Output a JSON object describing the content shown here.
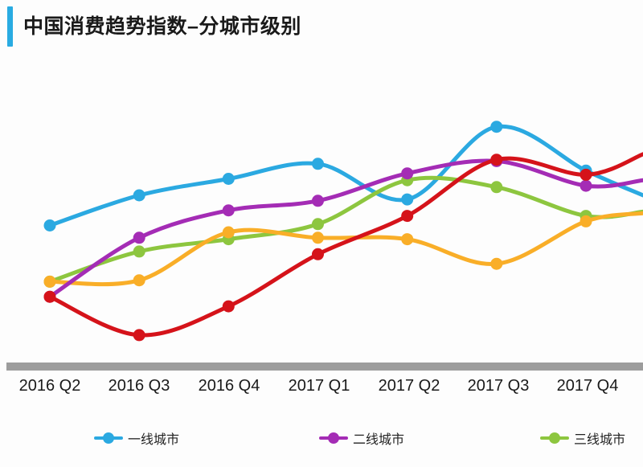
{
  "page": {
    "background": "#fdfdfd"
  },
  "header": {
    "title": "中国消费趋势指数–分城市级别",
    "accent_color": "#29abe2",
    "text_color": "#1a1a1a"
  },
  "chart_data": {
    "type": "line",
    "title": "中国消费趋势指数–分城市级别",
    "categories": [
      "2016 Q2",
      "2016 Q3",
      "2016 Q4",
      "2017 Q1",
      "2017 Q2",
      "2017 Q3",
      "2017 Q4"
    ],
    "xlabel": "",
    "ylabel": "",
    "ylim": [
      52,
      72
    ],
    "y_axis_visible": false,
    "grid": false,
    "legend_position": "bottom",
    "series": [
      {
        "id": "tier1",
        "name": "一线城市",
        "color": "#2ba9e1",
        "values": [
          62.0,
          64.2,
          65.4,
          66.5,
          63.9,
          69.2,
          66.0
        ],
        "offscreen_next": 64.2
      },
      {
        "id": "tier2",
        "name": "二线城市",
        "color": "#a42cb5",
        "values": [
          56.8,
          61.1,
          63.1,
          63.8,
          65.8,
          66.7,
          64.9
        ],
        "offscreen_next": 65.3
      },
      {
        "id": "tier3",
        "name": "三线城市",
        "color": "#8dc63f",
        "values": [
          57.9,
          60.1,
          61.0,
          62.1,
          65.3,
          64.8,
          62.7
        ],
        "offscreen_next": 63.0
      },
      {
        "id": "series-orange",
        "name": "",
        "color": "#f9ae28",
        "values": [
          57.9,
          58.0,
          61.5,
          61.1,
          61.0,
          59.2,
          62.3
        ],
        "offscreen_next": 62.9
      },
      {
        "id": "series-red",
        "name": "",
        "color": "#d5131a",
        "values": [
          56.8,
          54.0,
          56.1,
          59.9,
          62.7,
          66.8,
          65.7
        ],
        "offscreen_next": 67.2
      }
    ]
  },
  "x_axis": {
    "bar_color": "#9d9d9d",
    "label_color": "#1a1a1a"
  },
  "legend": {
    "items": [
      {
        "label": "一线城市",
        "color": "#2ba9e1"
      },
      {
        "label": "二线城市",
        "color": "#a42cb5"
      },
      {
        "label": "三线城市",
        "color": "#8dc63f"
      }
    ]
  }
}
